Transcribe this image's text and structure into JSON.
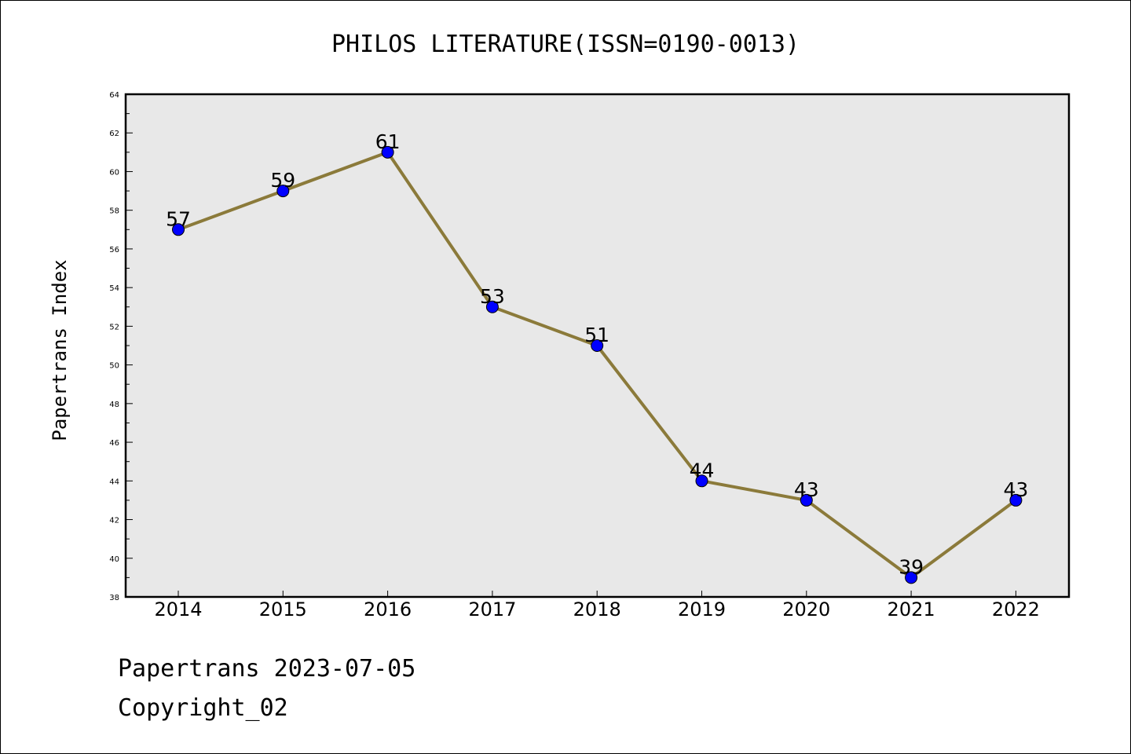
{
  "chart_data": {
    "type": "line",
    "title": "PHILOS LITERATURE(ISSN=0190-0013)",
    "xlabel": "",
    "ylabel": "Papertrans Index",
    "categories": [
      "2014",
      "2015",
      "2016",
      "2017",
      "2018",
      "2019",
      "2020",
      "2021",
      "2022"
    ],
    "values": [
      57,
      59,
      61,
      53,
      51,
      44,
      43,
      39,
      43
    ],
    "data_labels": [
      "57",
      "59",
      "61",
      "53",
      "51",
      "44",
      "43",
      "39",
      "43"
    ],
    "ylim": [
      38,
      64
    ],
    "yticks": [
      38,
      40,
      42,
      44,
      46,
      48,
      50,
      52,
      54,
      56,
      58,
      60,
      62,
      64
    ],
    "ytick_labels": [
      "38",
      "40",
      "42",
      "44",
      "46",
      "48",
      "50",
      "52",
      "54",
      "56",
      "58",
      "60",
      "62",
      "64"
    ],
    "grid": false,
    "line_color": "#8b7a3a",
    "marker_color": "#0000ff",
    "plot_background": "#e8e8e8"
  },
  "footer": {
    "line1": "Papertrans 2023-07-05",
    "line2": "Copyright_02"
  }
}
